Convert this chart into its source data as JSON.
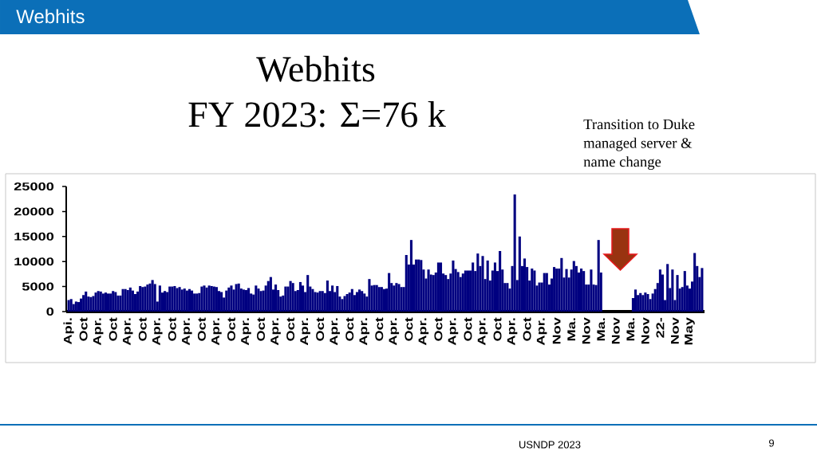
{
  "chart_data": {
    "type": "bar",
    "title": "Webhits",
    "subtitle": "FY 2023: Σ=76 k",
    "categories": [
      "Api.",
      null,
      null,
      null,
      null,
      null,
      "Oct",
      null,
      null,
      null,
      null,
      null,
      "Apr.",
      null,
      null,
      null,
      null,
      null,
      "Oct",
      null,
      null,
      null,
      null,
      null,
      "Apr.",
      null,
      null,
      null,
      null,
      null,
      "Oct",
      null,
      null,
      null,
      null,
      null,
      "Apr.",
      null,
      null,
      null,
      null,
      null,
      "Oct",
      null,
      null,
      null,
      null,
      null,
      "Apr.",
      null,
      null,
      null,
      null,
      null,
      "Oct",
      null,
      null,
      null,
      null,
      null,
      "Apr.",
      null,
      null,
      null,
      null,
      null,
      "Oct",
      null,
      null,
      null,
      null,
      null,
      "Apr.",
      null,
      null,
      null,
      null,
      null,
      "Oct",
      null,
      null,
      null,
      null,
      null,
      "Apr.",
      null,
      null,
      null,
      null,
      null,
      "Oct",
      null,
      null,
      null,
      null,
      null,
      "Apr.",
      null,
      null,
      null,
      null,
      null,
      "Oct",
      null,
      null,
      null,
      null,
      null,
      "Apr.",
      null,
      null,
      null,
      null,
      null,
      "Oct",
      null,
      null,
      null,
      null,
      null,
      "Apr.",
      null,
      null,
      null,
      null,
      null,
      "Oct",
      null,
      null,
      null,
      null,
      null,
      "Apr.",
      null,
      null,
      null,
      null,
      null,
      "Oct",
      null,
      null,
      null,
      null,
      null,
      "Apr.",
      null,
      null,
      null,
      null,
      null,
      "Oct",
      null,
      null,
      null,
      null,
      null,
      "Apr.",
      null,
      null,
      null,
      null,
      null,
      "Oct",
      null,
      null,
      null,
      null,
      null,
      "Apr.",
      null,
      null,
      null,
      null,
      null,
      "Oct",
      null,
      null,
      null,
      null,
      null,
      "Apr.",
      null,
      null,
      null,
      null,
      null,
      "Oct",
      null,
      null,
      null,
      null,
      null,
      "Apr.",
      null,
      null,
      null,
      null,
      null,
      "Nov",
      null,
      null,
      null,
      null,
      null,
      "Ma.",
      null,
      null,
      null,
      null,
      null,
      "Nov",
      null,
      null,
      null,
      null,
      null,
      "Ma.",
      null,
      null,
      null,
      null,
      null,
      "Nov",
      null,
      null,
      null,
      null,
      null,
      "Ma.",
      null,
      null,
      null,
      null,
      null,
      "Nov",
      null,
      null,
      null,
      null,
      null,
      "22-",
      null,
      null,
      null,
      null,
      null,
      "Nov",
      null,
      null,
      null,
      null,
      null,
      "May",
      null,
      null,
      null,
      null,
      null
    ],
    "values": [
      2300,
      2500,
      1500,
      2000,
      1900,
      2600,
      3300,
      4000,
      3000,
      2900,
      3100,
      3800,
      4100,
      4000,
      3600,
      3800,
      3600,
      3600,
      4100,
      3900,
      3200,
      3200,
      4500,
      4500,
      4300,
      4800,
      4200,
      3500,
      4000,
      5100,
      4900,
      5000,
      5400,
      5600,
      6300,
      5500,
      2000,
      5200,
      3800,
      4100,
      3900,
      5000,
      5000,
      5100,
      4700,
      4900,
      4400,
      4600,
      4200,
      4500,
      4200,
      3600,
      3600,
      3700,
      5000,
      5200,
      4800,
      5200,
      5100,
      5000,
      4900,
      4100,
      3900,
      2800,
      4200,
      4800,
      5200,
      4400,
      5500,
      5600,
      4600,
      4400,
      4300,
      4700,
      3600,
      3400,
      5200,
      4600,
      4100,
      4200,
      5200,
      6100,
      6900,
      4400,
      5400,
      4300,
      3000,
      3200,
      5000,
      5000,
      6100,
      5700,
      4100,
      4300,
      5900,
      5200,
      3900,
      7300,
      5000,
      4500,
      3900,
      3800,
      4100,
      4100,
      3700,
      6200,
      4100,
      5200,
      3900,
      5100,
      3000,
      2500,
      3100,
      3500,
      3800,
      4500,
      3300,
      3900,
      4400,
      4100,
      3600,
      3000,
      6500,
      5200,
      5300,
      5300,
      4900,
      4900,
      4500,
      4600,
      7700,
      5700,
      5200,
      5700,
      5500,
      4900,
      4900,
      11300,
      9400,
      14300,
      9400,
      10400,
      10400,
      10300,
      8400,
      6600,
      8400,
      7400,
      7300,
      7800,
      9800,
      9800,
      7600,
      7300,
      6500,
      7600,
      10200,
      8500,
      7900,
      6900,
      7600,
      8200,
      8200,
      8200,
      9800,
      8100,
      11600,
      9100,
      11100,
      6500,
      10200,
      6200,
      8200,
      9800,
      8100,
      12100,
      8400,
      5700,
      5700,
      4600,
      9100,
      23400,
      6300,
      15000,
      9100,
      10600,
      8900,
      6200,
      8600,
      8200,
      5200,
      5800,
      5800,
      7700,
      7700,
      5400,
      6600,
      8900,
      8600,
      8600,
      10700,
      6800,
      8500,
      6800,
      8400,
      10100,
      9100,
      7800,
      8600,
      8100,
      5400,
      5400,
      8400,
      5400,
      5300,
      14300,
      7800,
      null,
      null,
      null,
      null,
      null,
      null,
      null,
      null,
      null,
      null,
      null,
      null,
      2700,
      4400,
      3300,
      3700,
      3300,
      3800,
      3500,
      2500,
      3600,
      4500,
      5700,
      8400,
      7400,
      2300,
      9500,
      4700,
      8400,
      2300,
      7300,
      4600,
      4900,
      8100,
      5200,
      4600,
      6000,
      11700,
      9100,
      6900,
      8700
    ],
    "color": "#000080",
    "ylim": [
      0,
      25000
    ],
    "yticks": [
      0,
      5000,
      10000,
      15000,
      20000,
      25000
    ],
    "annotations": [
      "Webhits",
      "Transition to Duke managed server & name change",
      "USNDP 2023",
      "9"
    ]
  }
}
